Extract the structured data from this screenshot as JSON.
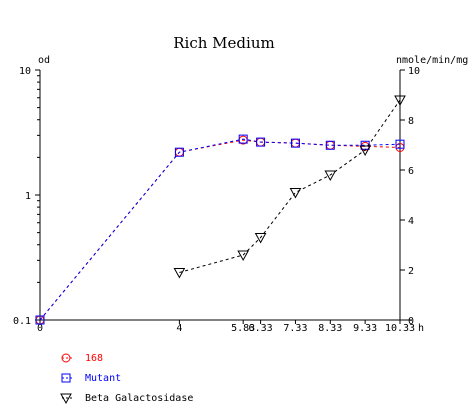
{
  "chart_data": {
    "type": "line",
    "title": "Rich Medium",
    "left_axis_label": "od",
    "right_axis_label": "nmole/min/mg",
    "x_unit_label": "h",
    "x": [
      0,
      4,
      5.83,
      6.33,
      7.33,
      8.33,
      9.33,
      10.33
    ],
    "x_tick_labels": [
      "0",
      "4",
      "5.83",
      "6.33",
      "7.33",
      "8.33",
      "9.33",
      "10.33"
    ],
    "xlim": [
      0,
      10.33
    ],
    "y_left": {
      "scale": "log",
      "lim": [
        0.1,
        10
      ],
      "tick_values": [
        0.1,
        1,
        10
      ],
      "tick_labels": [
        "0.1",
        "1",
        "10"
      ]
    },
    "y_right": {
      "scale": "linear",
      "lim": [
        0,
        10
      ],
      "tick_values": [
        0,
        2,
        4,
        6,
        8,
        10
      ],
      "tick_labels": [
        "0",
        "2",
        "4",
        "6",
        "8",
        "10"
      ]
    },
    "series": [
      {
        "name": "168",
        "axis": "left",
        "marker": "circle",
        "color": "#ff0000",
        "points": [
          [
            0,
            0.1
          ],
          [
            4,
            2.2
          ],
          [
            5.83,
            2.75
          ],
          [
            6.33,
            2.65
          ],
          [
            7.33,
            2.6
          ],
          [
            8.33,
            2.5
          ],
          [
            9.33,
            2.45
          ],
          [
            10.33,
            2.4
          ]
        ]
      },
      {
        "name": "Mutant",
        "axis": "left",
        "marker": "square",
        "color": "#0000ff",
        "points": [
          [
            0,
            0.1
          ],
          [
            4,
            2.2
          ],
          [
            5.83,
            2.8
          ],
          [
            6.33,
            2.65
          ],
          [
            7.33,
            2.6
          ],
          [
            8.33,
            2.5
          ],
          [
            9.33,
            2.5
          ],
          [
            10.33,
            2.55
          ]
        ]
      },
      {
        "name": "Beta Galactosidase",
        "axis": "right",
        "marker": "triangle-down",
        "color": "#000000",
        "points": [
          [
            4,
            1.9
          ],
          [
            5.83,
            2.6
          ],
          [
            6.33,
            3.3
          ],
          [
            7.33,
            5.1
          ],
          [
            8.33,
            5.8
          ],
          [
            9.33,
            6.8
          ],
          [
            10.33,
            8.8
          ]
        ]
      }
    ],
    "legend_position": "bottom-left",
    "grid": false
  }
}
